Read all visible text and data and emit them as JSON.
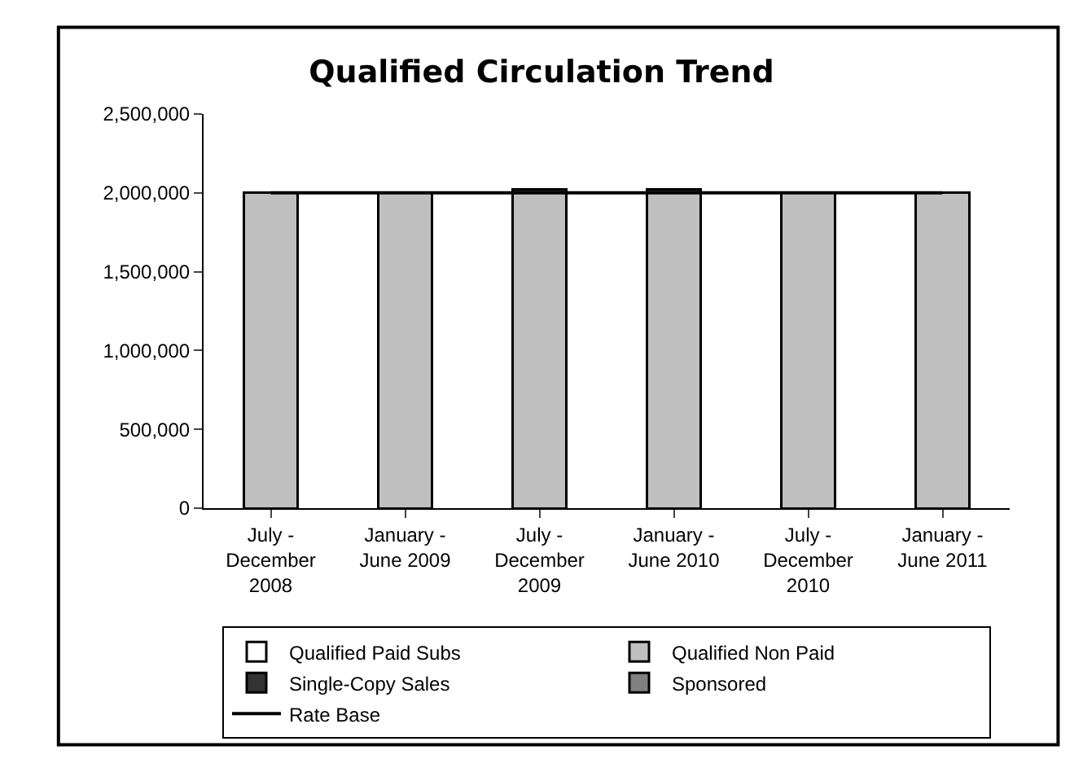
{
  "chart_data": {
    "type": "bar",
    "title": "Qualified Circulation Trend",
    "stacked": true,
    "categories": [
      "July -\nDecember\n2008",
      "January -\nJune 2009",
      "July -\nDecember\n2009",
      "January -\nJune 2010",
      "July -\nDecember\n2010",
      "January -\nJune 2011"
    ],
    "series": [
      {
        "name": "Qualified Paid Subs",
        "color": "#ffffff",
        "values": [
          null,
          null,
          null,
          null,
          null,
          null
        ]
      },
      {
        "name": "Qualified Non Paid",
        "color": "#c0c0c0",
        "values": [
          2000000,
          2000000,
          2000000,
          2000000,
          2000000,
          2000000
        ]
      },
      {
        "name": "Single-Copy Sales",
        "color": "#333333",
        "values": [
          null,
          null,
          20000,
          20000,
          null,
          null
        ]
      },
      {
        "name": "Sponsored",
        "color": "#808080",
        "values": [
          null,
          null,
          null,
          null,
          null,
          null
        ]
      },
      {
        "name": "Rate Base",
        "type": "line",
        "color": "#000000",
        "values": [
          2000000,
          2000000,
          2000000,
          2000000,
          2000000,
          2000000
        ]
      }
    ],
    "ylim": [
      0,
      2500000
    ],
    "yticks": [
      0,
      {
        "value": 500000,
        "label": "500,000"
      },
      {
        "value": 1000000,
        "label": "1,000,000"
      },
      {
        "value": 1500000,
        "label": "1,500,000"
      },
      {
        "value": 2000000,
        "label": "2,000,000"
      },
      {
        "value": 2500000,
        "label": "2,500,000"
      }
    ],
    "grid": false,
    "legend": "bottom",
    "marker": "none"
  }
}
